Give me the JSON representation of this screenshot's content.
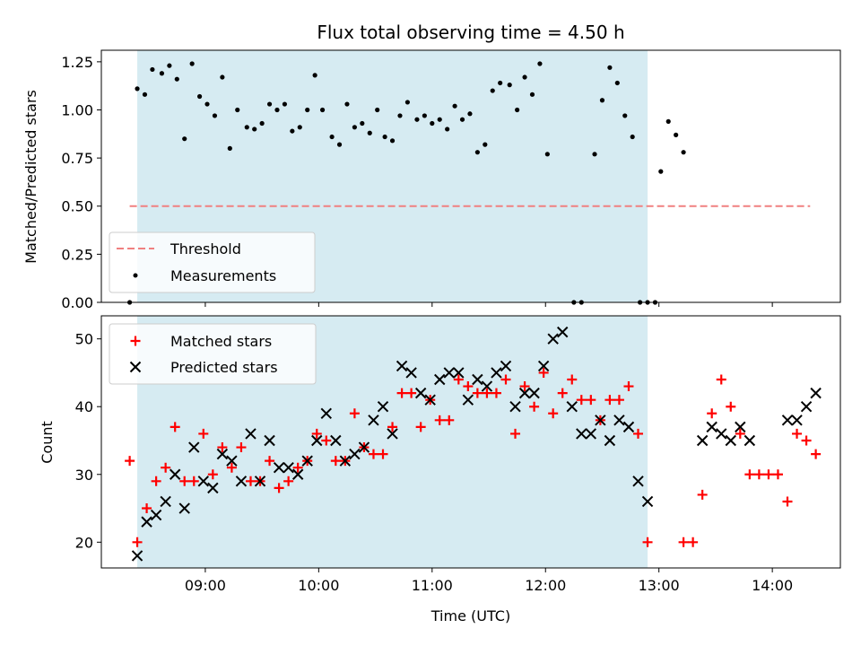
{
  "title": "Flux total observing time = 4.50 h",
  "colors": {
    "shade": "#ADD8E6",
    "threshold": "#F08080",
    "matched": "#FF0000",
    "predicted": "#000000",
    "measurement": "#000000"
  },
  "chart_data": [
    {
      "type": "scatter",
      "panel": "top",
      "xlabel": "",
      "ylabel": "Matched/Predicted stars",
      "x_range": [
        "08:05",
        "14:36"
      ],
      "ylim": [
        0,
        1.31
      ],
      "yticks": [
        "0.00",
        "0.25",
        "0.50",
        "0.75",
        "1.00",
        "1.25"
      ],
      "shaded_interval": [
        "08:24",
        "12:54"
      ],
      "threshold": {
        "name": "Threshold",
        "value": 0.5,
        "x": [
          "08:20",
          "14:20"
        ]
      },
      "legend_position": "lower-left",
      "measurements": {
        "name": "Measurements",
        "points": [
          [
            "08:20",
            0.0
          ],
          [
            "08:24",
            1.11
          ],
          [
            "08:28",
            1.08
          ],
          [
            "08:32",
            1.21
          ],
          [
            "08:37",
            1.19
          ],
          [
            "08:41",
            1.23
          ],
          [
            "08:45",
            1.16
          ],
          [
            "08:49",
            0.85
          ],
          [
            "08:53",
            1.24
          ],
          [
            "08:57",
            1.07
          ],
          [
            "09:01",
            1.03
          ],
          [
            "09:05",
            0.97
          ],
          [
            "09:09",
            1.17
          ],
          [
            "09:13",
            0.8
          ],
          [
            "09:17",
            1.0
          ],
          [
            "09:22",
            0.91
          ],
          [
            "09:26",
            0.9
          ],
          [
            "09:30",
            0.93
          ],
          [
            "09:34",
            1.03
          ],
          [
            "09:38",
            1.0
          ],
          [
            "09:42",
            1.03
          ],
          [
            "09:46",
            0.89
          ],
          [
            "09:50",
            0.91
          ],
          [
            "09:54",
            1.0
          ],
          [
            "09:58",
            1.18
          ],
          [
            "10:02",
            1.0
          ],
          [
            "10:07",
            0.86
          ],
          [
            "10:11",
            0.82
          ],
          [
            "10:15",
            1.03
          ],
          [
            "10:19",
            0.91
          ],
          [
            "10:23",
            0.93
          ],
          [
            "10:27",
            0.88
          ],
          [
            "10:31",
            1.0
          ],
          [
            "10:35",
            0.86
          ],
          [
            "10:39",
            0.84
          ],
          [
            "10:43",
            0.97
          ],
          [
            "10:47",
            1.04
          ],
          [
            "10:52",
            0.95
          ],
          [
            "10:56",
            0.97
          ],
          [
            "11:00",
            0.93
          ],
          [
            "11:04",
            0.95
          ],
          [
            "11:08",
            0.9
          ],
          [
            "11:12",
            1.02
          ],
          [
            "11:16",
            0.95
          ],
          [
            "11:20",
            0.98
          ],
          [
            "11:24",
            0.78
          ],
          [
            "11:28",
            0.82
          ],
          [
            "11:32",
            1.1
          ],
          [
            "11:36",
            1.14
          ],
          [
            "11:41",
            1.13
          ],
          [
            "11:45",
            1.0
          ],
          [
            "11:49",
            1.17
          ],
          [
            "11:53",
            1.08
          ],
          [
            "11:57",
            1.24
          ],
          [
            "12:01",
            0.77
          ],
          [
            "12:15",
            0.0
          ],
          [
            "12:19",
            0.0
          ],
          [
            "12:26",
            0.77
          ],
          [
            "12:30",
            1.05
          ],
          [
            "12:34",
            1.22
          ],
          [
            "12:38",
            1.14
          ],
          [
            "12:42",
            0.97
          ],
          [
            "12:46",
            0.86
          ],
          [
            "12:50",
            0.0
          ],
          [
            "12:54",
            0.0
          ],
          [
            "12:58",
            0.0
          ],
          [
            "13:01",
            0.68
          ],
          [
            "13:05",
            0.94
          ],
          [
            "13:09",
            0.87
          ],
          [
            "13:13",
            0.78
          ]
        ]
      }
    },
    {
      "type": "scatter",
      "panel": "bottom",
      "xlabel": "Time (UTC)",
      "ylabel": "Count",
      "x_range": [
        "08:05",
        "14:36"
      ],
      "ylim": [
        16.2,
        53.4
      ],
      "yticks": [
        "20",
        "30",
        "40",
        "50"
      ],
      "xticks": [
        "09:00",
        "10:00",
        "11:00",
        "12:00",
        "13:00",
        "14:00"
      ],
      "shaded_interval": [
        "08:24",
        "12:54"
      ],
      "legend_position": "upper-left",
      "series": [
        {
          "name": "Matched stars",
          "marker": "+",
          "points": [
            [
              "08:20",
              32
            ],
            [
              "08:24",
              20
            ],
            [
              "08:29",
              25
            ],
            [
              "08:34",
              29
            ],
            [
              "08:39",
              31
            ],
            [
              "08:44",
              37
            ],
            [
              "08:49",
              29
            ],
            [
              "08:54",
              29
            ],
            [
              "08:59",
              36
            ],
            [
              "09:04",
              30
            ],
            [
              "09:09",
              34
            ],
            [
              "09:14",
              31
            ],
            [
              "09:19",
              34
            ],
            [
              "09:24",
              29
            ],
            [
              "09:29",
              29
            ],
            [
              "09:34",
              32
            ],
            [
              "09:39",
              28
            ],
            [
              "09:44",
              29
            ],
            [
              "09:49",
              31
            ],
            [
              "09:54",
              32
            ],
            [
              "09:59",
              36
            ],
            [
              "10:04",
              35
            ],
            [
              "10:09",
              32
            ],
            [
              "10:14",
              32
            ],
            [
              "10:19",
              39
            ],
            [
              "10:24",
              34
            ],
            [
              "10:29",
              33
            ],
            [
              "10:34",
              33
            ],
            [
              "10:39",
              37
            ],
            [
              "10:44",
              42
            ],
            [
              "10:49",
              42
            ],
            [
              "10:54",
              37
            ],
            [
              "10:59",
              41
            ],
            [
              "11:04",
              38
            ],
            [
              "11:09",
              38
            ],
            [
              "11:14",
              44
            ],
            [
              "11:19",
              43
            ],
            [
              "11:24",
              42
            ],
            [
              "11:29",
              42
            ],
            [
              "11:34",
              42
            ],
            [
              "11:39",
              44
            ],
            [
              "11:44",
              36
            ],
            [
              "11:49",
              43
            ],
            [
              "11:54",
              40
            ],
            [
              "11:59",
              45
            ],
            [
              "12:04",
              39
            ],
            [
              "12:09",
              42
            ],
            [
              "12:14",
              44
            ],
            [
              "12:19",
              41
            ],
            [
              "12:24",
              41
            ],
            [
              "12:29",
              38
            ],
            [
              "12:34",
              41
            ],
            [
              "12:39",
              41
            ],
            [
              "12:44",
              43
            ],
            [
              "12:49",
              36
            ],
            [
              "12:54",
              20
            ],
            [
              "13:13",
              20
            ],
            [
              "13:18",
              20
            ],
            [
              "13:23",
              27
            ],
            [
              "13:28",
              39
            ],
            [
              "13:33",
              44
            ],
            [
              "13:38",
              40
            ],
            [
              "13:43",
              36
            ],
            [
              "13:48",
              30
            ],
            [
              "13:53",
              30
            ],
            [
              "13:58",
              30
            ],
            [
              "14:03",
              30
            ],
            [
              "14:08",
              26
            ],
            [
              "14:13",
              36
            ],
            [
              "14:18",
              35
            ],
            [
              "14:23",
              33
            ]
          ]
        },
        {
          "name": "Predicted stars",
          "marker": "x",
          "points": [
            [
              "08:24",
              18
            ],
            [
              "08:29",
              23
            ],
            [
              "08:34",
              24
            ],
            [
              "08:39",
              26
            ],
            [
              "08:44",
              30
            ],
            [
              "08:49",
              25
            ],
            [
              "08:54",
              34
            ],
            [
              "08:59",
              29
            ],
            [
              "09:04",
              28
            ],
            [
              "09:09",
              33
            ],
            [
              "09:14",
              32
            ],
            [
              "09:19",
              29
            ],
            [
              "09:24",
              36
            ],
            [
              "09:29",
              29
            ],
            [
              "09:34",
              35
            ],
            [
              "09:39",
              31
            ],
            [
              "09:44",
              31
            ],
            [
              "09:49",
              30
            ],
            [
              "09:54",
              32
            ],
            [
              "09:59",
              35
            ],
            [
              "10:04",
              39
            ],
            [
              "10:09",
              35
            ],
            [
              "10:14",
              32
            ],
            [
              "10:19",
              33
            ],
            [
              "10:24",
              34
            ],
            [
              "10:29",
              38
            ],
            [
              "10:34",
              40
            ],
            [
              "10:39",
              36
            ],
            [
              "10:44",
              46
            ],
            [
              "10:49",
              45
            ],
            [
              "10:54",
              42
            ],
            [
              "10:59",
              41
            ],
            [
              "11:04",
              44
            ],
            [
              "11:09",
              45
            ],
            [
              "11:14",
              45
            ],
            [
              "11:19",
              41
            ],
            [
              "11:24",
              44
            ],
            [
              "11:29",
              43
            ],
            [
              "11:34",
              45
            ],
            [
              "11:39",
              46
            ],
            [
              "11:44",
              40
            ],
            [
              "11:49",
              42
            ],
            [
              "11:54",
              42
            ],
            [
              "11:59",
              46
            ],
            [
              "12:04",
              50
            ],
            [
              "12:09",
              51
            ],
            [
              "12:14",
              40
            ],
            [
              "12:19",
              36
            ],
            [
              "12:24",
              36
            ],
            [
              "12:29",
              38
            ],
            [
              "12:34",
              35
            ],
            [
              "12:39",
              38
            ],
            [
              "12:44",
              37
            ],
            [
              "12:49",
              29
            ],
            [
              "12:54",
              26
            ],
            [
              "13:23",
              35
            ],
            [
              "13:28",
              37
            ],
            [
              "13:33",
              36
            ],
            [
              "13:38",
              35
            ],
            [
              "13:43",
              37
            ],
            [
              "13:48",
              35
            ],
            [
              "14:08",
              38
            ],
            [
              "14:13",
              38
            ],
            [
              "14:18",
              40
            ],
            [
              "14:23",
              42
            ]
          ]
        }
      ]
    }
  ]
}
